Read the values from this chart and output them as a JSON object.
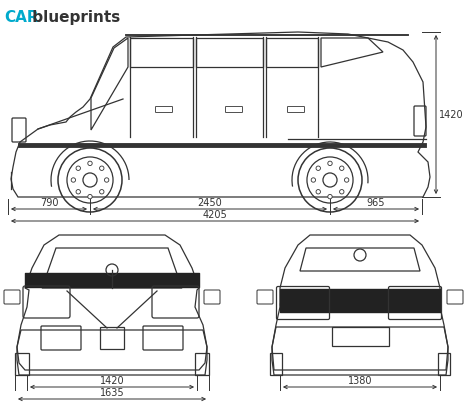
{
  "title_car": "CAR",
  "title_blueprints": " blueprints",
  "title_color": "#00aacc",
  "bg_color": "#ffffff",
  "line_color": "#333333",
  "dim_color": "#333333",
  "dimensions": {
    "side_top": "1420",
    "side_front": "790",
    "side_wheelbase": "2450",
    "side_rear": "965",
    "side_total": "4205",
    "front_track": "1420",
    "front_total": "1635",
    "rear_track": "1380"
  },
  "figsize": [
    4.75,
    4.05
  ],
  "dpi": 100
}
